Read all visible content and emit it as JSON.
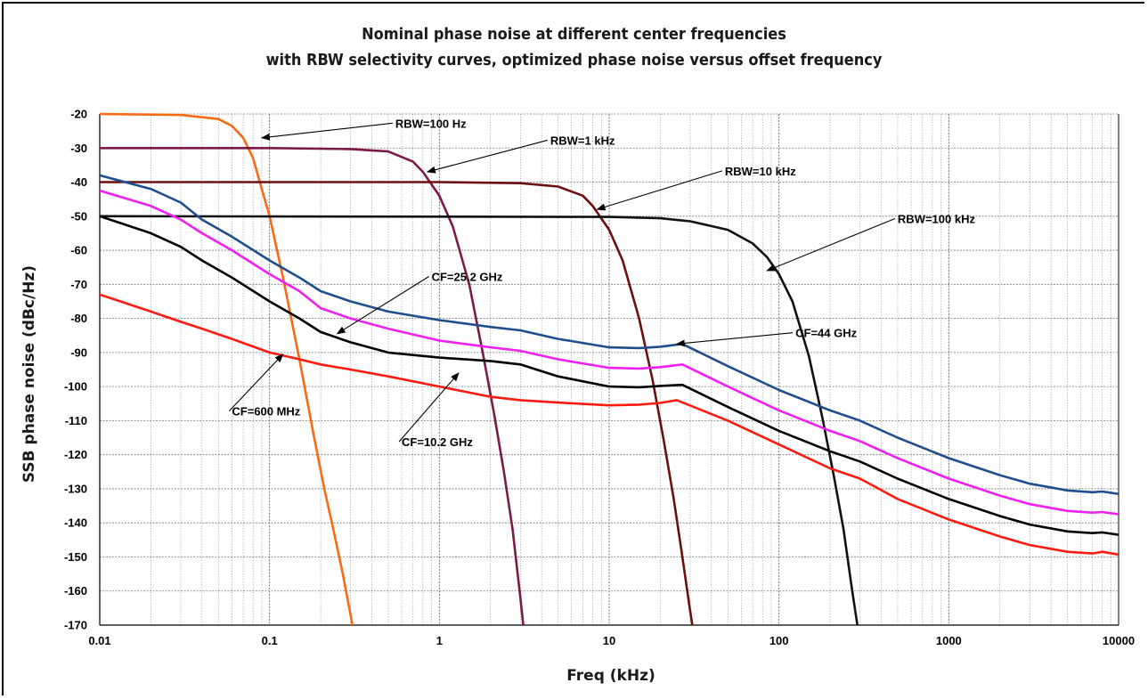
{
  "chart_data": {
    "type": "line",
    "title_line1": "Nominal phase noise at different center frequencies",
    "title_line2": "with RBW selectivity curves, optimized phase noise versus offset frequency",
    "xlabel": "Freq (kHz)",
    "ylabel": "SSB phase noise (dBc/Hz)",
    "xscale": "log",
    "xlim": [
      0.01,
      10000
    ],
    "ylim": [
      -170,
      -20
    ],
    "grid": true,
    "x_ticks": [
      "0.01",
      "0.1",
      "1",
      "10",
      "100",
      "1000",
      "10000"
    ],
    "y_ticks": [
      "-20",
      "-30",
      "-40",
      "-50",
      "-60",
      "-70",
      "-80",
      "-90",
      "-100",
      "-110",
      "-120",
      "-130",
      "-140",
      "-150",
      "-160",
      "-170"
    ],
    "series": [
      {
        "color": "#fa6a14",
        "x": [
          0.01,
          0.03,
          0.05,
          0.06,
          0.07,
          0.08,
          0.09,
          0.1,
          0.12,
          0.15,
          0.18,
          0.21,
          0.24,
          0.27,
          0.3,
          0.32
        ],
        "y": [
          -20,
          -20.3,
          -21.5,
          -23.5,
          -27,
          -33,
          -42,
          -50,
          -68,
          -92,
          -113,
          -130,
          -143,
          -155,
          -167,
          -175
        ]
      },
      {
        "color": "#7b1a4a",
        "x": [
          0.01,
          0.1,
          0.3,
          0.5,
          0.7,
          0.8,
          1.0,
          1.2,
          1.5,
          1.8,
          2.1,
          2.4,
          2.7,
          3.0,
          3.2
        ],
        "y": [
          -30,
          -30,
          -30.3,
          -31,
          -34,
          -37,
          -44,
          -53,
          -70,
          -90,
          -108,
          -125,
          -142,
          -162,
          -175
        ]
      },
      {
        "color": "#6b0f0f",
        "x": [
          0.01,
          1,
          3,
          5,
          7,
          8,
          10,
          12,
          15,
          18,
          21,
          24,
          27,
          30,
          32
        ],
        "y": [
          -40,
          -40,
          -40.3,
          -41.3,
          -44,
          -47,
          -54,
          -63,
          -80,
          -98,
          -116,
          -133,
          -150,
          -166,
          -175
        ]
      },
      {
        "color": "#111111",
        "x": [
          0.01,
          10,
          20,
          30,
          50,
          70,
          85,
          100,
          120,
          150,
          180,
          210,
          240,
          270,
          300
        ],
        "y": [
          -50,
          -50.2,
          -50.6,
          -51.5,
          -54,
          -58,
          -62,
          -67,
          -75,
          -91,
          -109,
          -126,
          -142,
          -160,
          -175
        ]
      },
      {
        "color": "#1f4e8c",
        "x": [
          0.01,
          0.02,
          0.03,
          0.04,
          0.06,
          0.1,
          0.15,
          0.2,
          0.3,
          0.5,
          1,
          2,
          3,
          5,
          10,
          15,
          20,
          27,
          50,
          100,
          200,
          300,
          500,
          1000,
          2000,
          3000,
          5000,
          7000,
          8000,
          10000
        ],
        "y": [
          -38,
          -42,
          -46,
          -51,
          -56,
          -63,
          -68,
          -72,
          -75,
          -78,
          -80.5,
          -82.5,
          -83.5,
          -86,
          -88.5,
          -88.7,
          -88.3,
          -87.5,
          -94,
          -101,
          -107,
          -110,
          -115,
          -121,
          -126,
          -128.5,
          -130.5,
          -131,
          -130.8,
          -131.5
        ]
      },
      {
        "color": "#f020f0",
        "x": [
          0.01,
          0.02,
          0.03,
          0.04,
          0.06,
          0.1,
          0.15,
          0.2,
          0.3,
          0.5,
          1,
          2,
          3,
          5,
          10,
          15,
          20,
          27,
          50,
          100,
          200,
          300,
          500,
          1000,
          2000,
          3000,
          5000,
          7000,
          8000,
          10000
        ],
        "y": [
          -42.5,
          -47,
          -51,
          -55,
          -60,
          -67,
          -72,
          -77,
          -80,
          -83,
          -86.5,
          -88.5,
          -89.5,
          -92,
          -94.5,
          -94.7,
          -94.3,
          -93.5,
          -100,
          -107,
          -113,
          -116,
          -121,
          -127,
          -132,
          -134.5,
          -136.5,
          -137,
          -136.8,
          -137.5
        ]
      },
      {
        "color": "#000000",
        "x": [
          0.01,
          0.02,
          0.03,
          0.04,
          0.06,
          0.1,
          0.15,
          0.2,
          0.3,
          0.5,
          1,
          2,
          3,
          5,
          10,
          15,
          20,
          27,
          50,
          100,
          200,
          300,
          500,
          1000,
          2000,
          3000,
          5000,
          7000,
          8000,
          10000
        ],
        "y": [
          -50,
          -55,
          -59,
          -63,
          -68,
          -75,
          -80,
          -84,
          -87,
          -90,
          -91.5,
          -92.5,
          -93.5,
          -97,
          -100,
          -100.2,
          -99.8,
          -99.5,
          -106,
          -113,
          -119,
          -122,
          -127,
          -133,
          -138,
          -140.5,
          -142.5,
          -143,
          -142.8,
          -143.5
        ]
      },
      {
        "color": "#ff1a10",
        "x": [
          0.01,
          0.02,
          0.03,
          0.04,
          0.06,
          0.1,
          0.15,
          0.2,
          0.3,
          0.5,
          1,
          2,
          3,
          5,
          10,
          15,
          20,
          25,
          50,
          100,
          200,
          300,
          500,
          1000,
          2000,
          3000,
          5000,
          7000,
          8000,
          10000
        ],
        "y": [
          -73,
          -78,
          -81,
          -83,
          -86,
          -90,
          -92,
          -93.5,
          -95,
          -97,
          -100,
          -103,
          -104,
          -104.7,
          -105.5,
          -105.3,
          -104.8,
          -104,
          -110,
          -117,
          -124,
          -127,
          -133,
          -139,
          -144,
          -146.5,
          -148.5,
          -149,
          -148.5,
          -149.3
        ]
      }
    ],
    "annotations": [
      {
        "text": "RBW=100 Hz",
        "at": [
          0.55,
          -24
        ],
        "arrow_to": [
          0.09,
          -27
        ]
      },
      {
        "text": "RBW=1 kHz",
        "at": [
          4.5,
          -29
        ],
        "arrow_to": [
          0.85,
          -37
        ]
      },
      {
        "text": "RBW=10 kHz",
        "at": [
          48,
          -38
        ],
        "arrow_to": [
          8.5,
          -48
        ]
      },
      {
        "text": "RBW=100 kHz",
        "at": [
          500,
          -52
        ],
        "arrow_to": [
          85,
          -66
        ]
      },
      {
        "text": "CF=25.2 GHz",
        "at": [
          0.9,
          -69
        ],
        "arrow_to": [
          0.25,
          -84.5
        ]
      },
      {
        "text": "CF=44 GHz",
        "at": [
          125,
          -85.5
        ],
        "arrow_to": [
          25,
          -87.5
        ]
      },
      {
        "text": "CF=600 MHz",
        "at": [
          0.06,
          -108.5
        ],
        "arrow_to": [
          0.12,
          -90.5
        ]
      },
      {
        "text": "CF=10.2 GHz",
        "at": [
          0.6,
          -117.5
        ],
        "arrow_to": [
          1.3,
          -96
        ]
      }
    ]
  }
}
